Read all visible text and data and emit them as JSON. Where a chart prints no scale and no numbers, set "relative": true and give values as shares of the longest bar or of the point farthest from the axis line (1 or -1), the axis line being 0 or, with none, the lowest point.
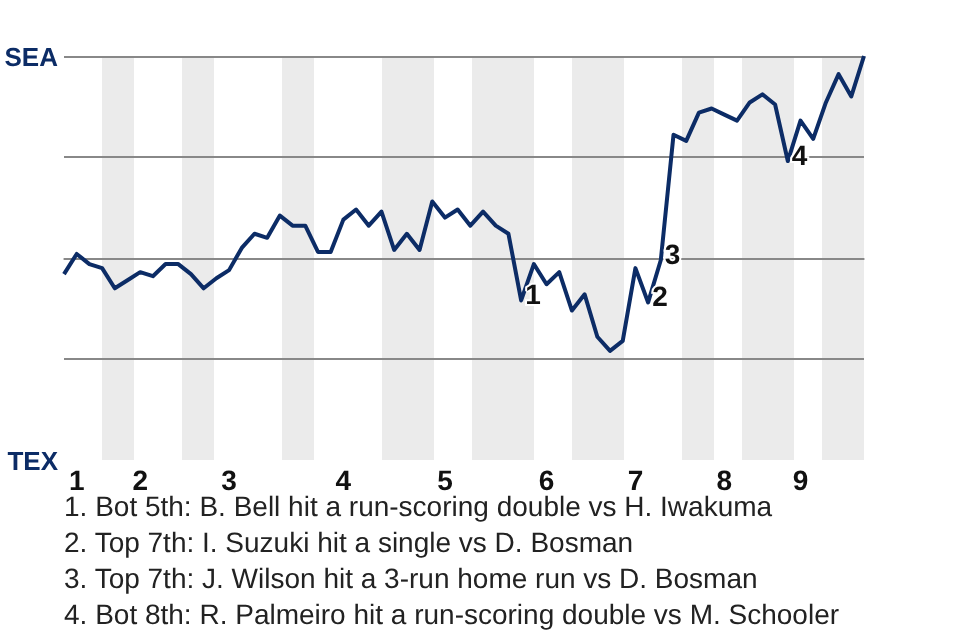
{
  "chart_data": {
    "type": "line",
    "relative": true,
    "categories": [
      null,
      "1",
      null,
      null,
      null,
      null,
      "2",
      null,
      null,
      null,
      null,
      null,
      null,
      "3",
      null,
      null,
      null,
      null,
      null,
      null,
      null,
      null,
      "4",
      null,
      null,
      null,
      null,
      null,
      null,
      null,
      "5",
      null,
      null,
      null,
      null,
      null,
      null,
      null,
      "6",
      null,
      null,
      null,
      null,
      null,
      null,
      "7",
      null,
      null,
      null,
      null,
      null,
      null,
      "8",
      null,
      null,
      null,
      null,
      null,
      "9",
      null,
      null,
      null,
      null,
      null
    ],
    "series": [
      {
        "color": "#0c2c66",
        "values": [
          -0.08,
          0.02,
          -0.03,
          -0.05,
          -0.15,
          -0.11,
          -0.07,
          -0.09,
          -0.03,
          -0.03,
          -0.08,
          -0.15,
          -0.1,
          -0.06,
          0.05,
          0.12,
          0.1,
          0.21,
          0.16,
          0.16,
          0.03,
          0.03,
          0.19,
          0.24,
          0.16,
          0.23,
          0.04,
          0.12,
          0.04,
          0.28,
          0.2,
          0.24,
          0.16,
          0.23,
          0.16,
          0.12,
          -0.21,
          -0.03,
          -0.13,
          -0.07,
          -0.26,
          -0.18,
          -0.39,
          -0.46,
          -0.41,
          -0.05,
          -0.22,
          -0.01,
          0.61,
          0.58,
          0.72,
          0.74,
          0.71,
          0.68,
          0.77,
          0.81,
          0.76,
          0.48,
          0.68,
          0.59,
          0.77,
          0.91,
          0.8,
          1
        ]
      }
    ],
    "marker": "none",
    "ref_lines": [
      {
        "axis": "y",
        "value": 1,
        "color": "#888888"
      },
      {
        "axis": "y",
        "value": 0.5,
        "color": "#888888"
      },
      {
        "axis": "y",
        "value": 0,
        "color": "#888888"
      },
      {
        "axis": "y",
        "value": -0.5,
        "color": "#888888"
      }
    ],
    "annotations": [
      "SEA",
      "TEX",
      {
        "text": "1",
        "y": -0.21
      },
      {
        "text": "2",
        "y": -0.22
      },
      {
        "text": "3",
        "y": -0.01
      },
      {
        "text": "4",
        "y": 0.48
      },
      "1. Bot 5th: B. Bell hit a run-scoring double vs H. Iwakuma",
      "2. Top 7th: I. Suzuki hit a single vs D. Bosman",
      "3. Top 7th: J. Wilson hit a 3-run home run vs D. Bosman",
      "4. Bot 8th: R. Palmeiro hit a run-scoring double vs M. Schooler"
    ]
  }
}
